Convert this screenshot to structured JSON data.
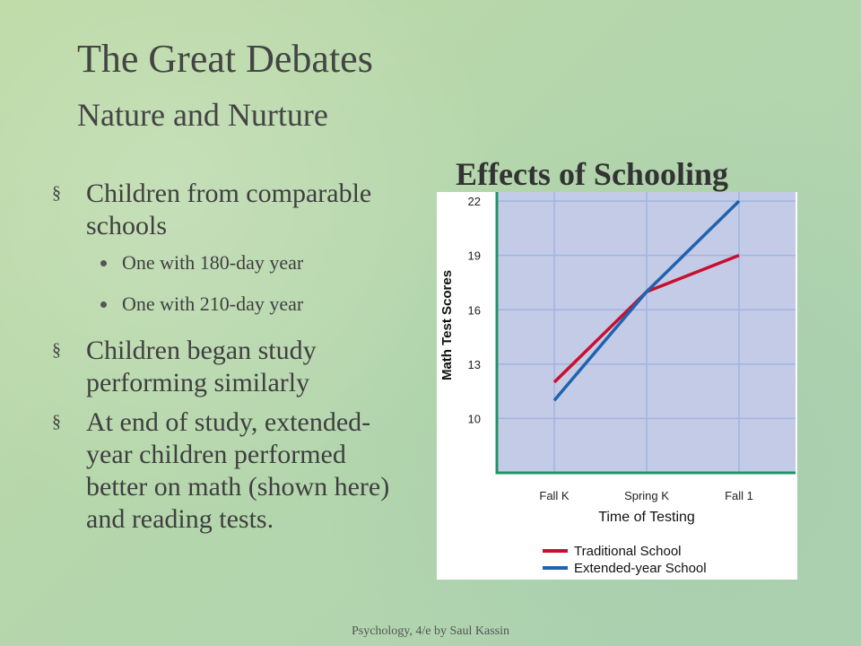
{
  "slide": {
    "title": "The Great Debates",
    "subtitle": "Nature and Nurture",
    "footer": "Psychology, 4/e by Saul Kassin"
  },
  "bullets": [
    {
      "level": 1,
      "text": "Children from comparable schools"
    },
    {
      "level": 2,
      "text": "One with 180-day year"
    },
    {
      "level": 2,
      "text": "One with 210-day year"
    },
    {
      "level": 1,
      "text": "Children began study performing similarly"
    },
    {
      "level": 1,
      "text": "At end of study, extended-year children performed better on math (shown here) and reading tests."
    }
  ],
  "colors": {
    "background": "#b9d7a6",
    "plot_bg": "#c4cbe6",
    "axis": "#1f9466",
    "grid": "#9fb5e0",
    "traditional": "#c8102e",
    "extended": "#1f62b0"
  },
  "chart_data": {
    "type": "line",
    "title": "Effects of Schooling",
    "xlabel": "Time of Testing",
    "ylabel": "Math Test Scores",
    "categories": [
      "Fall K",
      "Spring K",
      "Fall 1"
    ],
    "y_ticks": [
      10,
      13,
      16,
      19,
      22
    ],
    "ylim": [
      7,
      22.5
    ],
    "grid": true,
    "legend_position": "bottom-left",
    "series": [
      {
        "name": "Traditional School",
        "values": [
          12,
          17,
          19
        ],
        "color": "#c8102e"
      },
      {
        "name": "Extended-year School",
        "values": [
          11,
          17,
          22
        ],
        "color": "#1f62b0"
      }
    ]
  }
}
